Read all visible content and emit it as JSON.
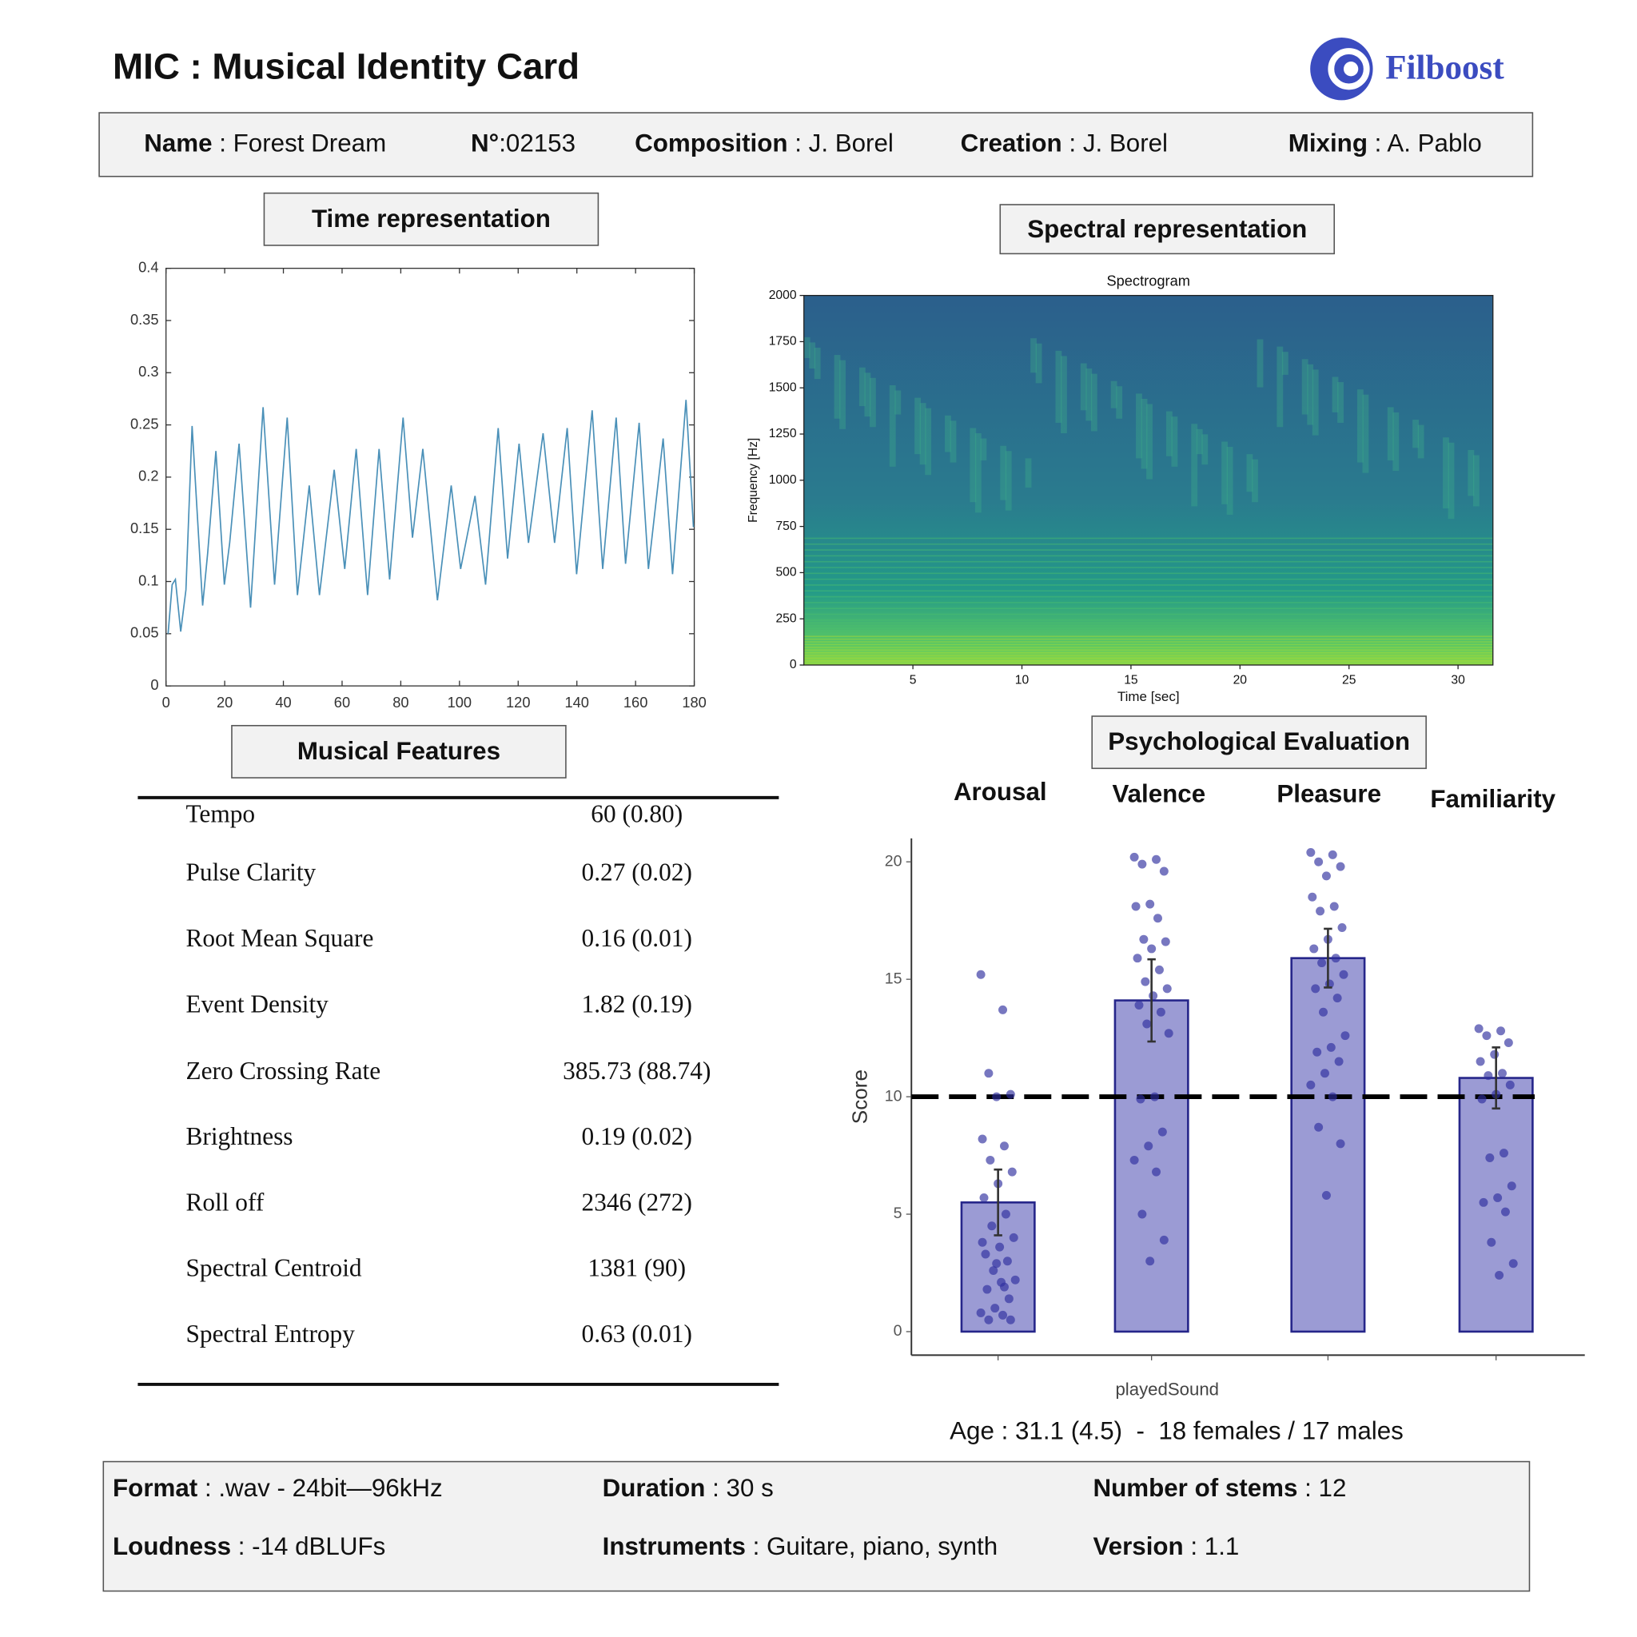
{
  "header": {
    "title": "MIC : Musical Identity Card",
    "logo": "Filboost"
  },
  "info": [
    {
      "label": "Name",
      "value": " : Forest Dream"
    },
    {
      "label": "N°",
      "value": ":02153"
    },
    {
      "label": "Composition",
      "value": " : J. Borel"
    },
    {
      "label": "Creation",
      "value": " : J. Borel"
    },
    {
      "label": "Mixing",
      "value": " : A. Pablo"
    }
  ],
  "sections": {
    "time": "Time representation",
    "spectral": "Spectral representation",
    "features": "Musical Features",
    "psychological": "Psychological Evaluation"
  },
  "chart_data": [
    {
      "type": "line",
      "x": [
        0.7,
        2.1,
        3.2,
        5,
        6.8,
        8.9,
        12.5,
        14.2,
        17,
        19.9,
        21.7,
        24.9,
        28.8,
        33.1,
        37,
        41.3,
        44.8,
        48.8,
        52.3,
        57.3,
        60.9,
        64.8,
        68.7,
        72.6,
        76.2,
        80.8,
        84,
        87.5,
        92.5,
        97.2,
        100.4,
        105.3,
        108.9,
        113.2,
        116.4,
        120.3,
        123.5,
        128.5,
        132.4,
        136.7,
        139.9,
        145.2,
        148.8,
        153.4,
        156.6,
        161.2,
        164.4,
        169.4,
        172.6,
        177.2,
        179.7
      ],
      "values": [
        0.05,
        0.097,
        0.102,
        0.052,
        0.092,
        0.249,
        0.077,
        0.127,
        0.225,
        0.097,
        0.137,
        0.232,
        0.075,
        0.267,
        0.097,
        0.257,
        0.087,
        0.192,
        0.087,
        0.207,
        0.112,
        0.227,
        0.087,
        0.227,
        0.102,
        0.257,
        0.142,
        0.227,
        0.082,
        0.192,
        0.112,
        0.182,
        0.097,
        0.247,
        0.122,
        0.232,
        0.137,
        0.242,
        0.137,
        0.247,
        0.107,
        0.264,
        0.112,
        0.257,
        0.117,
        0.252,
        0.112,
        0.237,
        0.107,
        0.274,
        0.152
      ],
      "color": "#4a90b8",
      "xlim": [
        0,
        180
      ],
      "xticks": [
        0,
        20,
        40,
        60,
        80,
        100,
        120,
        140,
        160,
        180
      ],
      "ylim": [
        0,
        0.4
      ],
      "yticks": [
        0,
        0.05,
        0.1,
        0.15,
        0.2,
        0.25,
        0.3,
        0.35,
        0.4
      ]
    },
    {
      "type": "spectrogram",
      "title": "Spectrogram",
      "xlabel": "Time [sec]",
      "ylabel": "Frequency [Hz]",
      "xlim": [
        0,
        31.6
      ],
      "xticks": [
        5,
        10,
        15,
        20,
        25,
        30
      ],
      "ylim": [
        0,
        2000
      ],
      "yticks": [
        0,
        250,
        500,
        750,
        1000,
        1250,
        1500,
        1750,
        2000
      ]
    },
    {
      "type": "bar",
      "categories": [
        "Arousal",
        "Valence",
        "Pleasure",
        "Familiarity"
      ],
      "values": [
        5.5,
        14.1,
        15.9,
        10.8
      ],
      "errors": [
        1.4,
        1.75,
        1.25,
        1.3
      ],
      "points": [
        [
          15.2,
          13.7,
          11,
          10.1,
          10,
          8.2,
          7.9,
          7.3,
          6.8,
          6.3,
          5.7,
          5,
          4.5,
          4,
          3.6,
          3.3,
          3,
          2.6,
          2.2,
          2.1,
          1.8,
          1.4,
          1,
          0.8,
          0.7,
          0.5,
          0.5,
          2.9,
          3.8,
          1.9
        ],
        [
          20.2,
          20.1,
          19.9,
          19.6,
          18.2,
          18.1,
          17.6,
          16.7,
          16.6,
          16.3,
          15.9,
          15.4,
          14.9,
          14.6,
          14.3,
          13.9,
          13.6,
          13.1,
          12.7,
          10,
          9.9,
          8.5,
          7.9,
          7.3,
          6.8,
          5,
          3.9,
          3
        ],
        [
          20.4,
          20.3,
          20,
          19.8,
          19.4,
          18.5,
          18.1,
          17.9,
          17.2,
          16.7,
          16.3,
          15.9,
          15.7,
          15.2,
          14.8,
          14.6,
          14.2,
          13.6,
          12.6,
          12.1,
          11.9,
          11.5,
          11,
          10.5,
          10,
          8.7,
          8,
          5.8
        ],
        [
          12.9,
          12.8,
          12.6,
          12.3,
          11.8,
          11.5,
          11,
          10.9,
          10.5,
          10.1,
          9.9,
          7.6,
          7.4,
          6.2,
          5.7,
          5.5,
          5.1,
          3.8,
          2.9,
          2.4
        ]
      ],
      "color": "#9b9bd4",
      "reference_line": 10,
      "ylabel": "Score",
      "xlabel": "playedSound",
      "ylim": [
        -1,
        21
      ],
      "yticks": [
        0,
        5,
        10,
        15,
        20
      ]
    }
  ],
  "features": [
    [
      "Tempo",
      "60 (0.80)"
    ],
    [
      "Pulse Clarity",
      "0.27 (0.02)"
    ],
    [
      "Root Mean Square",
      "0.16 (0.01)"
    ],
    [
      "Event Density",
      "1.82 (0.19)"
    ],
    [
      "Zero Crossing Rate",
      "385.73 (88.74)"
    ],
    [
      "Brightness",
      "0.19 (0.02)"
    ],
    [
      "Roll off",
      "2346 (272)"
    ],
    [
      "Spectral Centroid",
      "1381 (90)"
    ],
    [
      "Spectral Entropy",
      "0.63 (0.01)"
    ]
  ],
  "participants": "Age : 31.1 (4.5)  -  18 females / 17 males",
  "footer": [
    [
      {
        "label": "Format",
        "value": " : .wav - 24bit—96kHz"
      },
      {
        "label": "Duration",
        "value": " : 30 s"
      },
      {
        "label": "Number of stems",
        "value": " : 12"
      }
    ],
    [
      {
        "label": "Loudness",
        "value": " : -14 dBLUFs"
      },
      {
        "label": "Instruments",
        "value": " : Guitare, piano, synth"
      },
      {
        "label": "Version",
        "value": " : 1.1"
      }
    ]
  ]
}
